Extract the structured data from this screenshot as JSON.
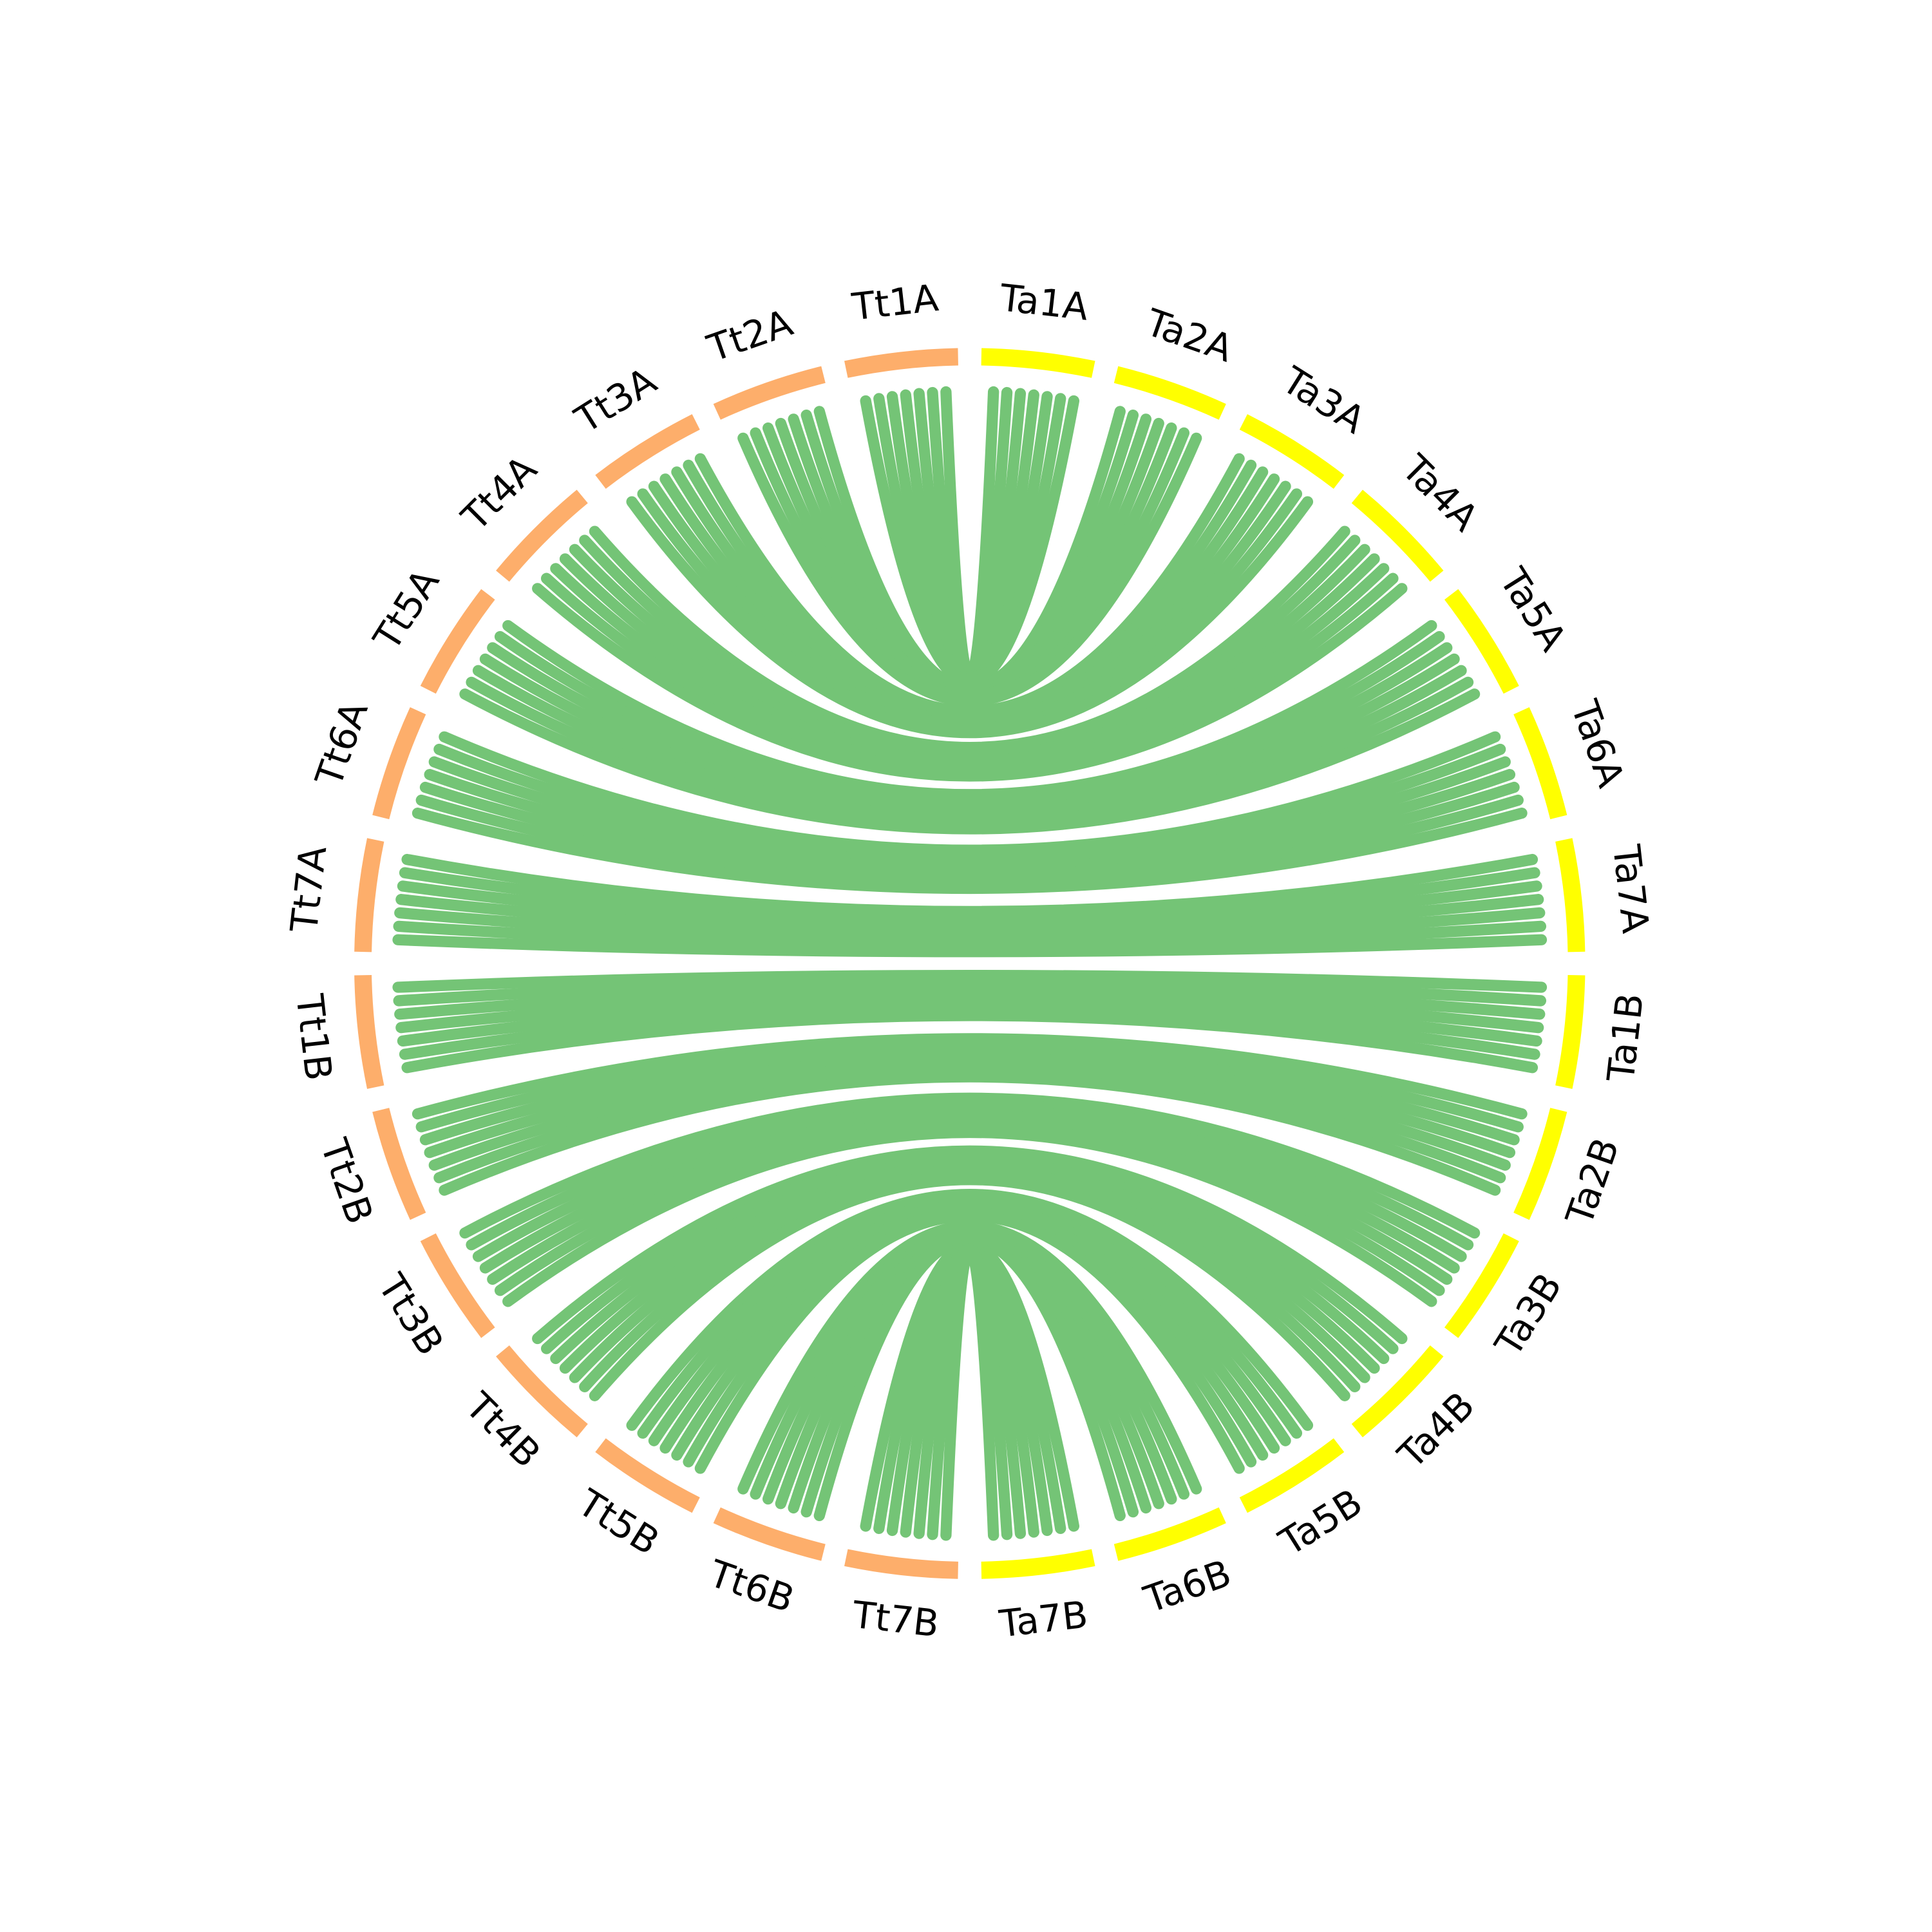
{
  "segments": [
    {
      "label": "Ta1A",
      "color": "#ffff00"
    },
    {
      "label": "Ta2A",
      "color": "#ffff00"
    },
    {
      "label": "Ta3A",
      "color": "#ffff00"
    },
    {
      "label": "Ta4A",
      "color": "#ffff00"
    },
    {
      "label": "Ta5A",
      "color": "#ffff00"
    },
    {
      "label": "Ta6A",
      "color": "#ffff00"
    },
    {
      "label": "Ta7A",
      "color": "#ffff00"
    },
    {
      "label": "Ta1B",
      "color": "#ffff00"
    },
    {
      "label": "Ta2B",
      "color": "#ffff00"
    },
    {
      "label": "Ta3B",
      "color": "#ffff00"
    },
    {
      "label": "Ta4B",
      "color": "#ffff00"
    },
    {
      "label": "Ta5B",
      "color": "#ffff00"
    },
    {
      "label": "Ta6B",
      "color": "#ffff00"
    },
    {
      "label": "Ta7B",
      "color": "#ffff00"
    },
    {
      "label": "Tt7B",
      "color": "#fdae6b"
    },
    {
      "label": "Tt6B",
      "color": "#fdae6b"
    },
    {
      "label": "Tt5B",
      "color": "#fdae6b"
    },
    {
      "label": "Tt4B",
      "color": "#fdae6b"
    },
    {
      "label": "Tt3B",
      "color": "#fdae6b"
    },
    {
      "label": "Tt2B",
      "color": "#fdae6b"
    },
    {
      "label": "Tt1B",
      "color": "#fdae6b"
    },
    {
      "label": "Tt7A",
      "color": "#fdae6b"
    },
    {
      "label": "Tt6A",
      "color": "#fdae6b"
    },
    {
      "label": "Tt5A",
      "color": "#fdae6b"
    },
    {
      "label": "Tt4A",
      "color": "#fdae6b"
    },
    {
      "label": "Tt3A",
      "color": "#fdae6b"
    },
    {
      "label": "Tt2A",
      "color": "#fdae6b"
    },
    {
      "label": "Tt1A",
      "color": "#fdae6b"
    }
  ],
  "link_color": "#74c476"
}
